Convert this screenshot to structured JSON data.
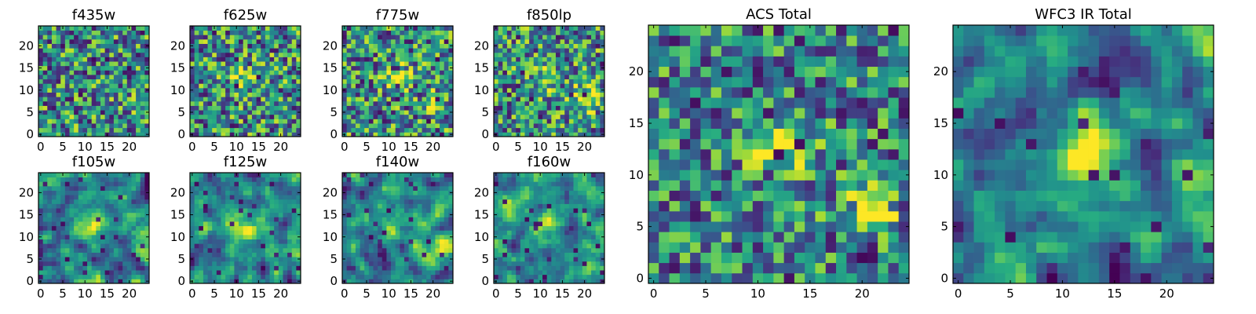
{
  "figure_title": "",
  "chart_data": [
    {
      "type": "heatmap",
      "title": "f435w",
      "grid_size": 25,
      "xlim": [
        -0.5,
        24.5
      ],
      "ylim": [
        -0.5,
        24.5
      ],
      "xticks": [
        0,
        5,
        10,
        15,
        20
      ],
      "yticks": [
        0,
        5,
        10,
        15,
        20
      ],
      "colormap": "viridis",
      "pattern": "noise",
      "seed": 11,
      "peaks": []
    },
    {
      "type": "heatmap",
      "title": "f625w",
      "grid_size": 25,
      "xlim": [
        -0.5,
        24.5
      ],
      "ylim": [
        -0.5,
        24.5
      ],
      "xticks": [
        0,
        5,
        10,
        15,
        20
      ],
      "yticks": [
        0,
        5,
        10,
        15,
        20
      ],
      "colormap": "viridis",
      "pattern": "noise",
      "seed": 23,
      "peaks": [
        {
          "x": 12,
          "y": 13,
          "amp": 0.35,
          "w": 2.0
        }
      ]
    },
    {
      "type": "heatmap",
      "title": "f775w",
      "grid_size": 25,
      "xlim": [
        -0.5,
        24.5
      ],
      "ylim": [
        -0.5,
        24.5
      ],
      "xticks": [
        0,
        5,
        10,
        15,
        20
      ],
      "yticks": [
        0,
        5,
        10,
        15,
        20
      ],
      "colormap": "viridis",
      "pattern": "noise",
      "seed": 37,
      "peaks": [
        {
          "x": 12,
          "y": 13,
          "amp": 0.4,
          "w": 2.0
        },
        {
          "x": 21,
          "y": 7,
          "amp": 0.25,
          "w": 1.8
        }
      ]
    },
    {
      "type": "heatmap",
      "title": "f850lp",
      "grid_size": 25,
      "xlim": [
        -0.5,
        24.5
      ],
      "ylim": [
        -0.5,
        24.5
      ],
      "xticks": [
        0,
        5,
        10,
        15,
        20
      ],
      "yticks": [
        0,
        5,
        10,
        15,
        20
      ],
      "colormap": "viridis",
      "pattern": "noise",
      "seed": 41,
      "peaks": [
        {
          "x": 12,
          "y": 13,
          "amp": 0.3,
          "w": 2.0
        },
        {
          "x": 20,
          "y": 8,
          "amp": 0.35,
          "w": 2.2
        }
      ]
    },
    {
      "type": "heatmap",
      "title": "f105w",
      "grid_size": 25,
      "xlim": [
        -0.5,
        24.5
      ],
      "ylim": [
        -0.5,
        24.5
      ],
      "xticks": [
        0,
        5,
        10,
        15,
        20
      ],
      "yticks": [
        0,
        5,
        10,
        15,
        20
      ],
      "colormap": "viridis",
      "pattern": "smooth",
      "seed": 53,
      "peaks": [
        {
          "x": 12,
          "y": 13,
          "amp": 0.35,
          "w": 2.5
        },
        {
          "x": 23,
          "y": 8,
          "amp": 0.3,
          "w": 2.0
        }
      ]
    },
    {
      "type": "heatmap",
      "title": "f125w",
      "grid_size": 25,
      "xlim": [
        -0.5,
        24.5
      ],
      "ylim": [
        -0.5,
        24.5
      ],
      "xticks": [
        0,
        5,
        10,
        15,
        20
      ],
      "yticks": [
        0,
        5,
        10,
        15,
        20
      ],
      "colormap": "viridis",
      "pattern": "smooth",
      "seed": 67,
      "peaks": [
        {
          "x": 12,
          "y": 13,
          "amp": 0.35,
          "w": 2.5
        },
        {
          "x": 22,
          "y": 7,
          "amp": 0.3,
          "w": 2.0
        }
      ]
    },
    {
      "type": "heatmap",
      "title": "f140w",
      "grid_size": 25,
      "xlim": [
        -0.5,
        24.5
      ],
      "ylim": [
        -0.5,
        24.5
      ],
      "xticks": [
        0,
        5,
        10,
        15,
        20
      ],
      "yticks": [
        0,
        5,
        10,
        15,
        20
      ],
      "colormap": "viridis",
      "pattern": "smooth",
      "seed": 79,
      "peaks": [
        {
          "x": 12,
          "y": 13,
          "amp": 0.3,
          "w": 2.5
        },
        {
          "x": 22,
          "y": 8,
          "amp": 0.35,
          "w": 2.2
        }
      ]
    },
    {
      "type": "heatmap",
      "title": "f160w",
      "grid_size": 25,
      "xlim": [
        -0.5,
        24.5
      ],
      "ylim": [
        -0.5,
        24.5
      ],
      "xticks": [
        0,
        5,
        10,
        15,
        20
      ],
      "yticks": [
        0,
        5,
        10,
        15,
        20
      ],
      "colormap": "viridis",
      "pattern": "smooth",
      "seed": 83,
      "peaks": [
        {
          "x": 12,
          "y": 13,
          "amp": 0.35,
          "w": 2.5
        },
        {
          "x": 23,
          "y": 8,
          "amp": 0.35,
          "w": 2.0
        }
      ]
    },
    {
      "type": "heatmap",
      "title": "ACS Total",
      "grid_size": 25,
      "xlim": [
        -0.5,
        24.5
      ],
      "ylim": [
        -0.5,
        24.5
      ],
      "xticks": [
        0,
        5,
        10,
        15,
        20
      ],
      "yticks": [
        0,
        5,
        10,
        15,
        20
      ],
      "colormap": "viridis",
      "pattern": "noise-mild",
      "seed": 97,
      "peaks": [
        {
          "x": 12,
          "y": 13,
          "amp": 0.45,
          "w": 2.2
        },
        {
          "x": 21,
          "y": 7,
          "amp": 0.35,
          "w": 2.2
        }
      ]
    },
    {
      "type": "heatmap",
      "title": "WFC3 IR Total",
      "grid_size": 25,
      "xlim": [
        -0.5,
        24.5
      ],
      "ylim": [
        -0.5,
        24.5
      ],
      "xticks": [
        0,
        5,
        10,
        15,
        20
      ],
      "yticks": [
        0,
        5,
        10,
        15,
        20
      ],
      "colormap": "viridis",
      "pattern": "smooth",
      "seed": 101,
      "peaks": [
        {
          "x": 12,
          "y": 13,
          "amp": 0.4,
          "w": 2.8
        },
        {
          "x": 24,
          "y": 8,
          "amp": 0.4,
          "w": 2.2
        }
      ]
    }
  ]
}
